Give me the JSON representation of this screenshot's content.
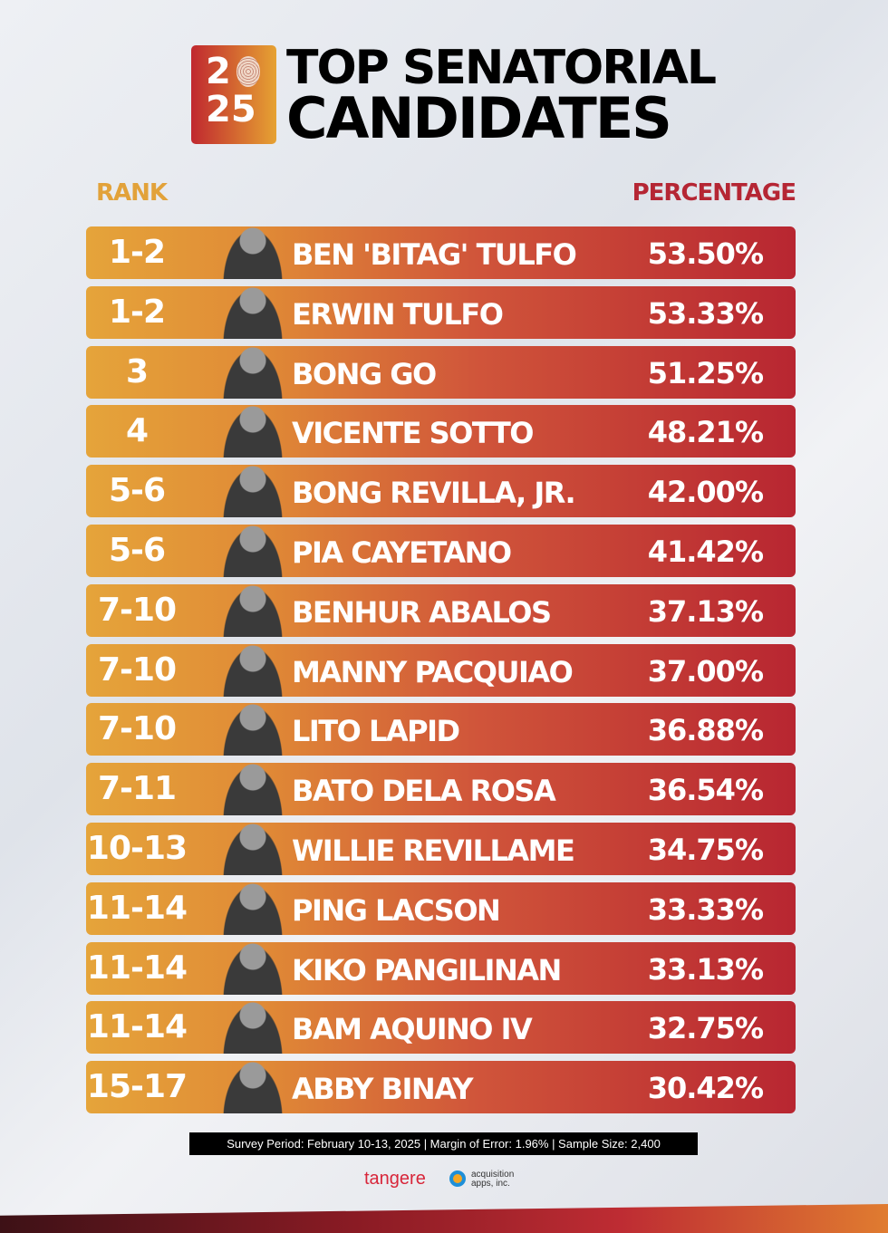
{
  "header": {
    "year_top": "2",
    "year_bottom": "25",
    "title_line1": "TOP SENATORIAL",
    "title_line2": "CANDIDATES"
  },
  "chart_data": {
    "type": "table",
    "columns": [
      "RANK",
      "PERCENTAGE"
    ],
    "rows": [
      {
        "rank": "1-2",
        "name": "BEN 'BITAG' TULFO",
        "percentage": "53.50%"
      },
      {
        "rank": "1-2",
        "name": "ERWIN TULFO",
        "percentage": "53.33%"
      },
      {
        "rank": "3",
        "name": "BONG GO",
        "percentage": "51.25%"
      },
      {
        "rank": "4",
        "name": "VICENTE SOTTO",
        "percentage": "48.21%"
      },
      {
        "rank": "5-6",
        "name": "BONG REVILLA, JR.",
        "percentage": "42.00%"
      },
      {
        "rank": "5-6",
        "name": "PIA CAYETANO",
        "percentage": "41.42%"
      },
      {
        "rank": "7-10",
        "name": "BENHUR ABALOS",
        "percentage": "37.13%"
      },
      {
        "rank": "7-10",
        "name": "MANNY PACQUIAO",
        "percentage": "37.00%"
      },
      {
        "rank": "7-10",
        "name": "LITO LAPID",
        "percentage": "36.88%"
      },
      {
        "rank": "7-11",
        "name": "BATO DELA ROSA",
        "percentage": "36.54%"
      },
      {
        "rank": "10-13",
        "name": "WILLIE REVILLAME",
        "percentage": "34.75%"
      },
      {
        "rank": "11-14",
        "name": "PING LACSON",
        "percentage": "33.33%"
      },
      {
        "rank": "11-14",
        "name": "KIKO PANGILINAN",
        "percentage": "33.13%"
      },
      {
        "rank": "11-14",
        "name": "BAM AQUINO IV",
        "percentage": "32.75%"
      },
      {
        "rank": "15-17",
        "name": "ABBY BINAY",
        "percentage": "30.42%"
      }
    ]
  },
  "footer": {
    "survey_note": "Survey Period: February 10-13, 2025 | Margin of Error: 1.96% | Sample Size: 2,400",
    "brand1": "tangere",
    "brand2_line1": "acquisition",
    "brand2_line2": "apps, inc."
  },
  "colors": {
    "rank_header": "#e2a23a",
    "percentage_header": "#b52634",
    "row_left": "#e5a43a",
    "row_right": "#b82631"
  }
}
